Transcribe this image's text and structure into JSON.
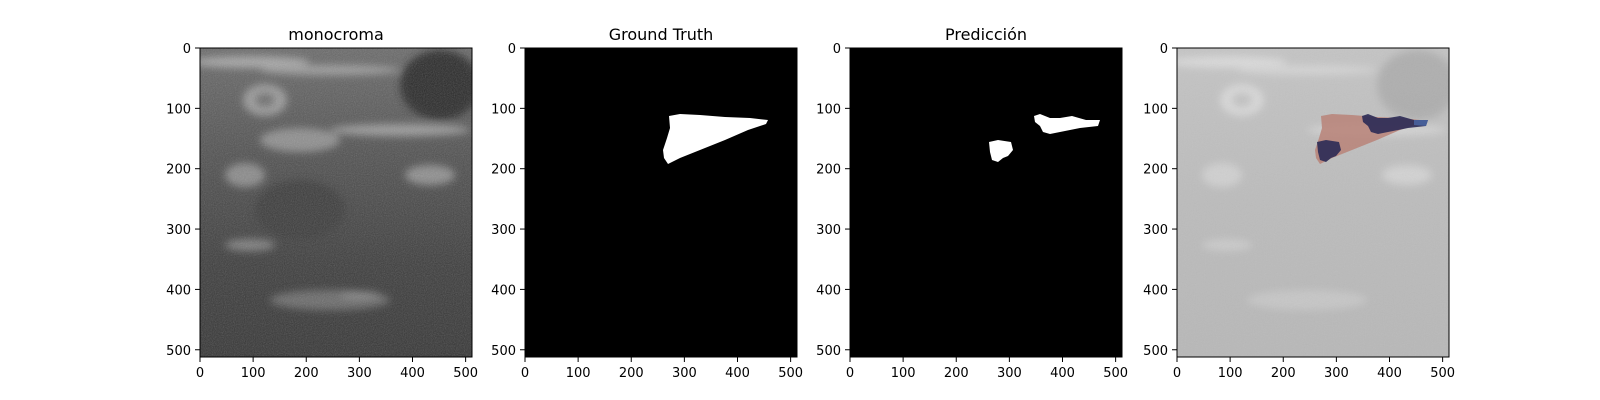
{
  "figure": {
    "background": "#ffffff",
    "panels": [
      {
        "id": "monocroma",
        "title": "monocroma",
        "image": "grayscale-ultrasound",
        "xticks": [
          "0",
          "100",
          "200",
          "300",
          "400",
          "500"
        ],
        "yticks": [
          "0",
          "100",
          "200",
          "300",
          "400",
          "500"
        ]
      },
      {
        "id": "ground-truth",
        "title": "Ground Truth",
        "image": "binary-mask-ground-truth",
        "xticks": [
          "0",
          "100",
          "200",
          "300",
          "400",
          "500"
        ],
        "yticks": [
          "0",
          "100",
          "200",
          "300",
          "400",
          "500"
        ]
      },
      {
        "id": "prediccion",
        "title": "Predicción",
        "image": "binary-mask-prediction",
        "xticks": [
          "0",
          "100",
          "200",
          "300",
          "400",
          "500"
        ],
        "yticks": [
          "0",
          "100",
          "200",
          "300",
          "400",
          "500"
        ]
      },
      {
        "id": "overlay",
        "title": "",
        "image": "overlay-ground-truth-and-prediction",
        "xticks": [
          "0",
          "100",
          "200",
          "300",
          "400",
          "500"
        ],
        "yticks": [
          "0",
          "100",
          "200",
          "300",
          "400",
          "500"
        ]
      }
    ],
    "colors": {
      "mask_background": "#000000",
      "mask_foreground": "#ffffff",
      "overlay_ground_truth": "#b88378",
      "overlay_prediction": "#2b2a55"
    }
  }
}
